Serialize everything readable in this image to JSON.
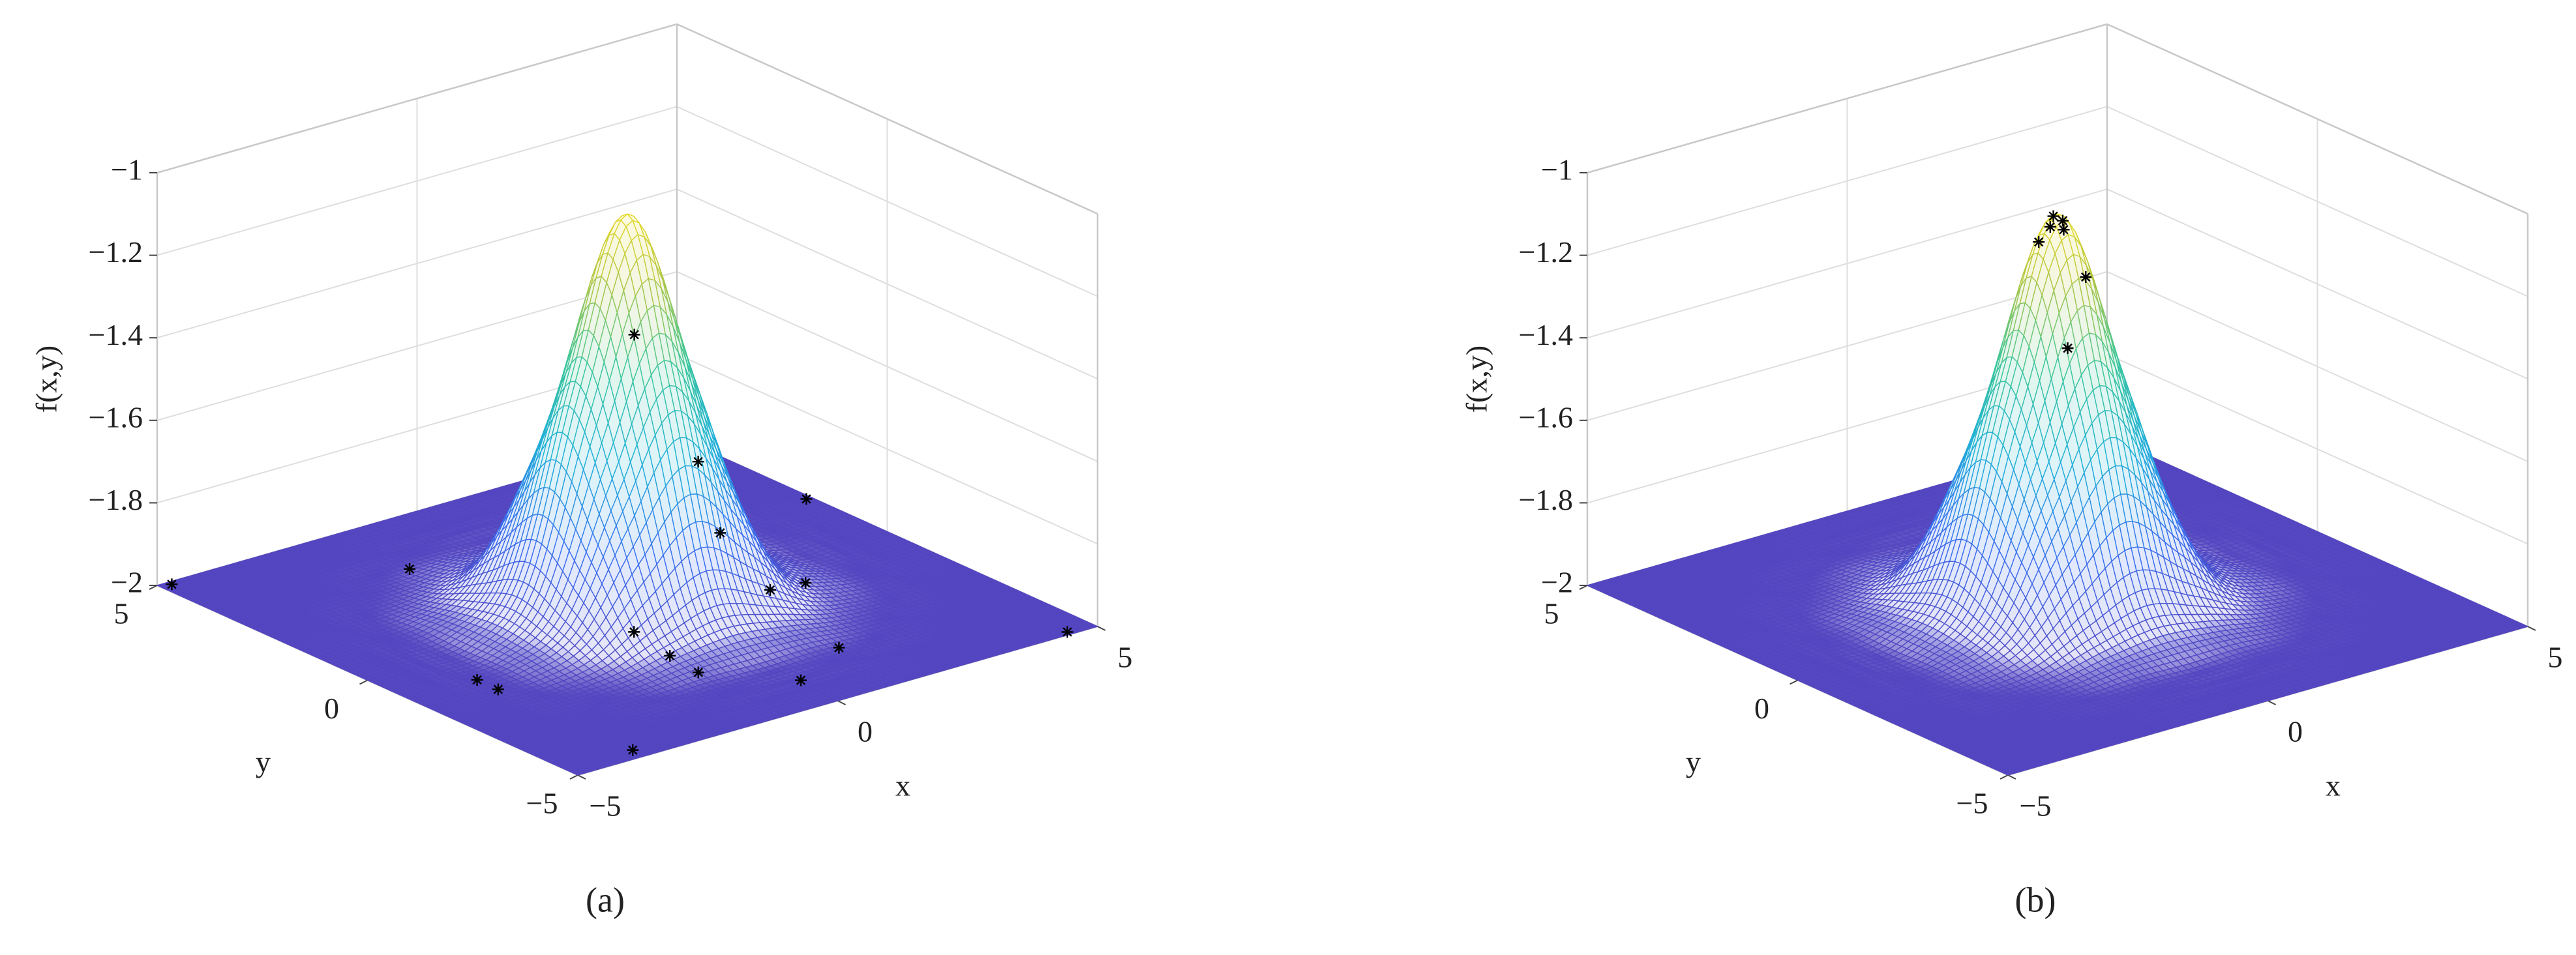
{
  "chart_data": [
    {
      "type": "surface",
      "panel_label": "(a)",
      "xlabel": "x",
      "ylabel": "y",
      "zlabel": "f(x,y)",
      "xlim": [
        -5,
        5
      ],
      "ylim": [
        -5,
        5
      ],
      "zlim": [
        -2,
        -1
      ],
      "xticks": [
        {
          "value": -5,
          "label": "−5"
        },
        0,
        5
      ],
      "yticks": [
        {
          "value": -5,
          "label": "−5"
        },
        0,
        5
      ],
      "zticks": [
        {
          "value": -2,
          "label": "−2"
        },
        {
          "value": -1.8,
          "label": "−1.8"
        },
        {
          "value": -1.6,
          "label": "−1.6"
        },
        {
          "value": -1.4,
          "label": "−1.4"
        },
        {
          "value": -1.2,
          "label": "−1.2"
        },
        {
          "value": -1,
          "label": "−1"
        }
      ],
      "grid": true,
      "colormap": [
        "#5346c0",
        "#3a6ff0",
        "#1fb0d8",
        "#3cc69a",
        "#b5c640",
        "#f9e11e"
      ],
      "surface": {
        "x": [
          -5,
          -4,
          -3,
          -2,
          -1,
          0,
          1,
          2,
          3,
          4,
          5
        ],
        "y": [
          -5,
          -4,
          -3,
          -2,
          -1,
          0,
          1,
          2,
          3,
          4,
          5
        ],
        "z": [
          [
            -2,
            -2,
            -2,
            -2,
            -2,
            -2,
            -2,
            -2,
            -2,
            -2,
            -2
          ],
          [
            -2,
            -2,
            -2,
            -2,
            -2,
            -2,
            -2,
            -2,
            -2,
            -2,
            -2
          ],
          [
            -2,
            -2,
            -2,
            -2,
            -1.99,
            -1.99,
            -1.99,
            -2,
            -2,
            -2,
            -2
          ],
          [
            -2,
            -2,
            -2,
            -1.98,
            -1.92,
            -1.87,
            -1.92,
            -1.98,
            -2,
            -2,
            -2
          ],
          [
            -2,
            -2,
            -1.99,
            -1.92,
            -1.65,
            -1.42,
            -1.65,
            -1.92,
            -1.99,
            -2,
            -2
          ],
          [
            -2,
            -2,
            -1.99,
            -1.87,
            -1.42,
            -1.05,
            -1.42,
            -1.87,
            -1.99,
            -2,
            -2
          ],
          [
            -2,
            -2,
            -1.99,
            -1.92,
            -1.65,
            -1.42,
            -1.65,
            -1.92,
            -1.99,
            -2,
            -2
          ],
          [
            -2,
            -2,
            -2,
            -1.98,
            -1.92,
            -1.87,
            -1.92,
            -1.98,
            -2,
            -2,
            -2
          ],
          [
            -2,
            -2,
            -2,
            -2,
            -1.99,
            -1.99,
            -1.99,
            -2,
            -2,
            -2,
            -2
          ],
          [
            -2,
            -2,
            -2,
            -2,
            -2,
            -2,
            -2,
            -2,
            -2,
            -2,
            -2
          ],
          [
            -2,
            -2,
            -2,
            -2,
            -2,
            -2,
            -2,
            -2,
            -2,
            -2,
            -2
          ]
        ]
      },
      "points": {
        "color": "#000000",
        "x": [
          -4.8,
          -1.6,
          -3.7,
          -3.7,
          -3.7,
          -0.6,
          -0.8,
          -0.9,
          4.6,
          3.0,
          2.1,
          4.9,
          2.7,
          1.4,
          0.1,
          4.5,
          0.7
        ],
        "y": [
          4.9,
          3.2,
          -1.0,
          -1.5,
          -4.7,
          -0.9,
          -2.0,
          -2.8,
          4.0,
          1.5,
          -0.8,
          1.8,
          -0.9,
          -3.3,
          -4.0,
          -4.9,
          0.7
        ],
        "z": [
          -2,
          -2,
          -2,
          -2,
          -2,
          -2,
          -2,
          -2,
          -2,
          -2,
          -2,
          -2,
          -2,
          -2,
          -2,
          -2,
          -1.4
        ]
      }
    },
    {
      "type": "surface",
      "panel_label": "(b)",
      "xlabel": "x",
      "ylabel": "y",
      "zlabel": "f(x,y)",
      "xlim": [
        -5,
        5
      ],
      "ylim": [
        -5,
        5
      ],
      "zlim": [
        -2,
        -1
      ],
      "xticks": [
        {
          "value": -5,
          "label": "−5"
        },
        0,
        5
      ],
      "yticks": [
        {
          "value": -5,
          "label": "−5"
        },
        0,
        5
      ],
      "zticks": [
        {
          "value": -2,
          "label": "−2"
        },
        {
          "value": -1.8,
          "label": "−1.8"
        },
        {
          "value": -1.6,
          "label": "−1.6"
        },
        {
          "value": -1.4,
          "label": "−1.4"
        },
        {
          "value": -1.2,
          "label": "−1.2"
        },
        {
          "value": -1,
          "label": "−1"
        }
      ],
      "grid": true,
      "colormap": [
        "#5346c0",
        "#3a6ff0",
        "#1fb0d8",
        "#3cc69a",
        "#b5c640",
        "#f9e11e"
      ],
      "surface": {
        "x": [
          -5,
          -4,
          -3,
          -2,
          -1,
          0,
          1,
          2,
          3,
          4,
          5
        ],
        "y": [
          -5,
          -4,
          -3,
          -2,
          -1,
          0,
          1,
          2,
          3,
          4,
          5
        ],
        "z": [
          [
            -2,
            -2,
            -2,
            -2,
            -2,
            -2,
            -2,
            -2,
            -2,
            -2,
            -2
          ],
          [
            -2,
            -2,
            -2,
            -2,
            -2,
            -2,
            -2,
            -2,
            -2,
            -2,
            -2
          ],
          [
            -2,
            -2,
            -2,
            -2,
            -1.99,
            -1.99,
            -1.99,
            -2,
            -2,
            -2,
            -2
          ],
          [
            -2,
            -2,
            -2,
            -1.98,
            -1.92,
            -1.87,
            -1.92,
            -1.98,
            -2,
            -2,
            -2
          ],
          [
            -2,
            -2,
            -1.99,
            -1.92,
            -1.65,
            -1.42,
            -1.65,
            -1.92,
            -1.99,
            -2,
            -2
          ],
          [
            -2,
            -2,
            -1.99,
            -1.87,
            -1.42,
            -1.05,
            -1.42,
            -1.87,
            -1.99,
            -2,
            -2
          ],
          [
            -2,
            -2,
            -1.99,
            -1.92,
            -1.65,
            -1.42,
            -1.65,
            -1.92,
            -1.99,
            -2,
            -2
          ],
          [
            -2,
            -2,
            -2,
            -1.98,
            -1.92,
            -1.87,
            -1.92,
            -1.98,
            -2,
            -2,
            -2
          ],
          [
            -2,
            -2,
            -2,
            -2,
            -1.99,
            -1.99,
            -1.99,
            -2,
            -2,
            -2,
            -2
          ],
          [
            -2,
            -2,
            -2,
            -2,
            -2,
            -2,
            -2,
            -2,
            -2,
            -2,
            -2
          ],
          [
            -2,
            -2,
            -2,
            -2,
            -2,
            -2,
            -2,
            -2,
            -2,
            -2,
            -2
          ]
        ]
      },
      "points": {
        "color": "#000000",
        "x": [
          0,
          0.1,
          -0.1,
          0.2,
          -0.2,
          0.3,
          0.6
        ],
        "y": [
          0.1,
          0,
          0.05,
          0.1,
          0.2,
          -0.3,
          0.5
        ],
        "z": [
          -1.06,
          -1.07,
          -1.08,
          -1.1,
          -1.12,
          -1.2,
          -1.42
        ]
      }
    }
  ]
}
